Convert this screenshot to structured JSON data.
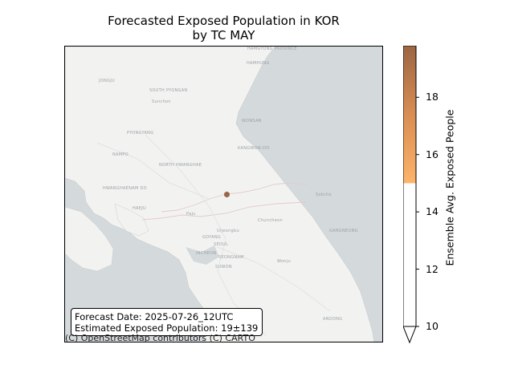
{
  "chart_data": {
    "type": "map",
    "title": "Forecasted Exposed Population in KOR\nby TC MAY",
    "title_line1": "Forecasted Exposed Population in KOR",
    "title_line2": "by TC MAY",
    "info_line1": "Forecast Date: 2025-07-26_12UTC",
    "info_line2": "Estimated Exposed Population: 19±139",
    "credit": "(C) OpenStreetMap contributors (C) CARTO",
    "colorbar": {
      "label": "Ensemble Avg. Exposed People",
      "min": 10,
      "max": 19.8,
      "ticks": [
        10,
        12,
        14,
        16,
        18
      ],
      "tick_labels": [
        "10",
        "12",
        "14",
        "16",
        "18"
      ],
      "colored_from": 15,
      "extend": "min",
      "color_low": "#fdb46a",
      "color_high": "#9c6644"
    },
    "points": [
      {
        "lon": 127.05,
        "lat": 38.0,
        "value": 19,
        "color": "#9c6644"
      }
    ],
    "map_labels": [
      "HAMGYONG PROVINCE",
      "HAMHUNG",
      "JONGJU",
      "SOUTH PYONGAN",
      "Sunchon",
      "PYONGYANG",
      "WONSAN",
      "NAMPO",
      "NORTH HWANGHAE",
      "KANGWON-DO",
      "HWANGHAENAM DO",
      "HAEJU",
      "Sokcho",
      "Paju",
      "Uijeongbu",
      "GOYANG",
      "SEOUL",
      "INCHEON",
      "SEONGNAM",
      "SUWON",
      "Chuncheon",
      "Wonju",
      "GANGNEUNG",
      "ANDONG",
      "Gangneung"
    ]
  }
}
